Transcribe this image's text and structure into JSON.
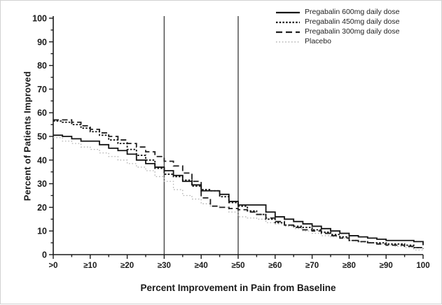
{
  "figure": {
    "background": "#ffffff",
    "border_color": "#d2d2d2",
    "axis_color": "#1a1a1a",
    "reference_line_color": "#474747"
  },
  "chart_data": {
    "type": "line",
    "subtype": "step",
    "title": "",
    "xlabel": "Percent Improvement in Pain from Baseline",
    "ylabel": "Percent of Patients Improved",
    "xlim": [
      0,
      100
    ],
    "ylim": [
      0,
      100
    ],
    "grid": false,
    "legend_position": "top-right",
    "x_tick_values": [
      0,
      10,
      20,
      30,
      40,
      50,
      60,
      70,
      80,
      90,
      100
    ],
    "x_tick_labels": [
      ">0",
      "≥10",
      "≥20",
      "≥30",
      "≥40",
      "≥50",
      "≥60",
      "≥70",
      "≥80",
      "≥90",
      "100"
    ],
    "y_tick_values": [
      0,
      10,
      20,
      30,
      40,
      50,
      60,
      70,
      80,
      90,
      100
    ],
    "y_tick_labels": [
      "0",
      "10",
      "20",
      "30",
      "40",
      "50",
      "60",
      "70",
      "80",
      "90",
      "100"
    ],
    "minor_tick_step": 5,
    "reference_lines_x": [
      30,
      50
    ],
    "x_step": 2.5,
    "series": [
      {
        "name": "Pregabalin 600mg daily dose",
        "style": "solid",
        "color": "#141414",
        "width": 1.8,
        "values": [
          50.5,
          50,
          49,
          48,
          48,
          46.5,
          45,
          44,
          42.5,
          40,
          38.5,
          37,
          35.5,
          33.5,
          31,
          29.5,
          27,
          27,
          25.5,
          22.5,
          21,
          21,
          21,
          18,
          16,
          15,
          14,
          13,
          12,
          11,
          10,
          9,
          8,
          7.5,
          7,
          6.5,
          6,
          6,
          6,
          5.5,
          4
        ]
      },
      {
        "name": "Pregabalin 450mg daily dose",
        "style": "dense-dotted",
        "color": "#141414",
        "width": 1.8,
        "values": [
          56.5,
          56,
          55,
          53.5,
          52,
          50.5,
          48.5,
          47,
          44.5,
          42,
          40,
          36.5,
          34,
          33,
          31.5,
          29,
          27.5,
          27,
          24.5,
          22,
          20.5,
          18.5,
          17,
          15,
          13.5,
          12.5,
          12,
          11.5,
          10.5,
          9.5,
          8.5,
          7.5,
          6,
          5.5,
          5,
          5,
          4.5,
          4.5,
          4,
          3,
          2.5
        ]
      },
      {
        "name": "Pregabalin 300mg daily dose",
        "style": "dashed",
        "color": "#1f1f1f",
        "width": 1.8,
        "values": [
          57,
          57,
          56,
          54.5,
          53,
          51.5,
          50,
          48.5,
          47,
          45.5,
          43.5,
          41.5,
          39.5,
          37.5,
          34.5,
          31,
          24,
          20.5,
          20,
          19.5,
          19,
          18,
          17,
          15.5,
          14,
          12.5,
          11.5,
          10.5,
          10,
          9,
          8,
          7,
          6,
          5.5,
          5,
          4.5,
          4,
          4,
          3.5,
          3,
          2.5
        ]
      },
      {
        "name": "Placebo",
        "style": "dotted",
        "color": "#b3b3b3",
        "width": 1.3,
        "values": [
          49.5,
          48,
          47,
          45.5,
          44.5,
          43,
          41.5,
          40,
          38.5,
          37,
          35.5,
          33,
          31,
          27.5,
          25,
          23.5,
          21.5,
          20.5,
          20,
          18,
          16,
          15.5,
          15,
          13.5,
          13,
          12,
          11,
          10,
          9,
          8,
          7.5,
          7,
          6,
          5.5,
          5,
          4.5,
          4,
          3.5,
          3,
          2,
          1.5
        ]
      }
    ]
  }
}
